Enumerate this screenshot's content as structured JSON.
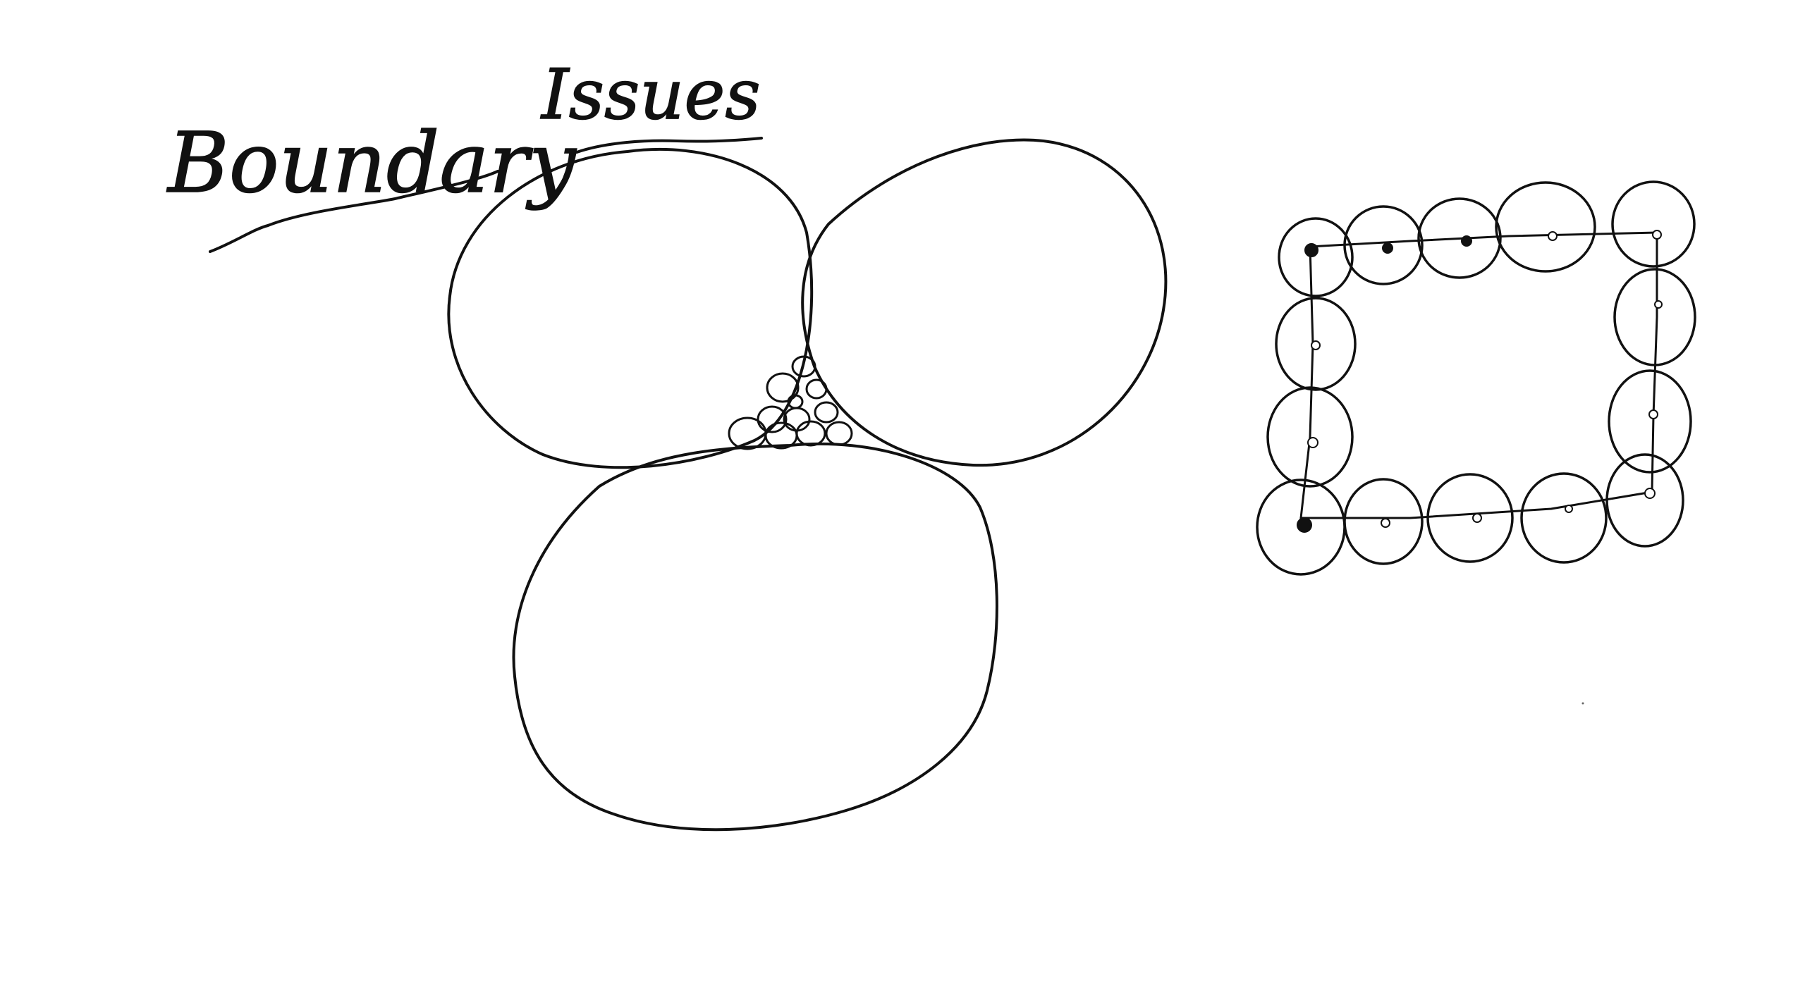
{
  "title": {
    "word1": "Boundary",
    "word2": "Issues"
  },
  "colors": {
    "background": "#ffffff",
    "ink": "#111111"
  }
}
